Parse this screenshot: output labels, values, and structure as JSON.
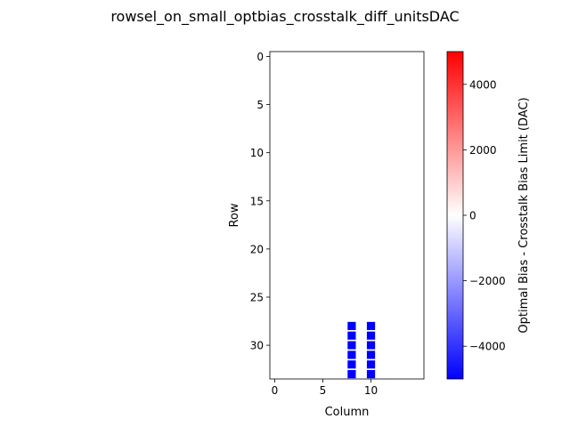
{
  "chart_data": {
    "type": "heatmap",
    "title": "rowsel_on_small_optbias_crosstalk_diff_unitsDAC",
    "xlabel": "Column",
    "ylabel": "Row",
    "xlim": [
      -0.5,
      15.5
    ],
    "ylim": [
      33.5,
      -0.5
    ],
    "xticks": [
      0,
      5,
      10
    ],
    "yticks": [
      0,
      5,
      10,
      15,
      20,
      25,
      30
    ],
    "background_value": 0,
    "cells": [
      {
        "row": 28,
        "col": 8,
        "value": -5000
      },
      {
        "row": 29,
        "col": 8,
        "value": -5000
      },
      {
        "row": 30,
        "col": 8,
        "value": -5000
      },
      {
        "row": 31,
        "col": 8,
        "value": -5000
      },
      {
        "row": 32,
        "col": 8,
        "value": -5000
      },
      {
        "row": 33,
        "col": 8,
        "value": -5000
      },
      {
        "row": 28,
        "col": 10,
        "value": -5000
      },
      {
        "row": 29,
        "col": 10,
        "value": -5000
      },
      {
        "row": 30,
        "col": 10,
        "value": -5000
      },
      {
        "row": 31,
        "col": 10,
        "value": -5000
      },
      {
        "row": 32,
        "col": 10,
        "value": -5000
      },
      {
        "row": 33,
        "col": 10,
        "value": -5000
      }
    ],
    "colorbar": {
      "label": "Optimal Bias - Crosstalk Bias Limit (DAC)",
      "colormap": "bwr",
      "vmin": -5000,
      "vmax": 5000,
      "ticks": [
        -4000,
        -2000,
        0,
        2000,
        4000
      ],
      "tick_labels": [
        "−4000",
        "−2000",
        "0",
        "2000",
        "4000"
      ]
    },
    "colors": {
      "low": "#0000ff",
      "mid": "#ffffff",
      "high": "#ff0000"
    }
  }
}
